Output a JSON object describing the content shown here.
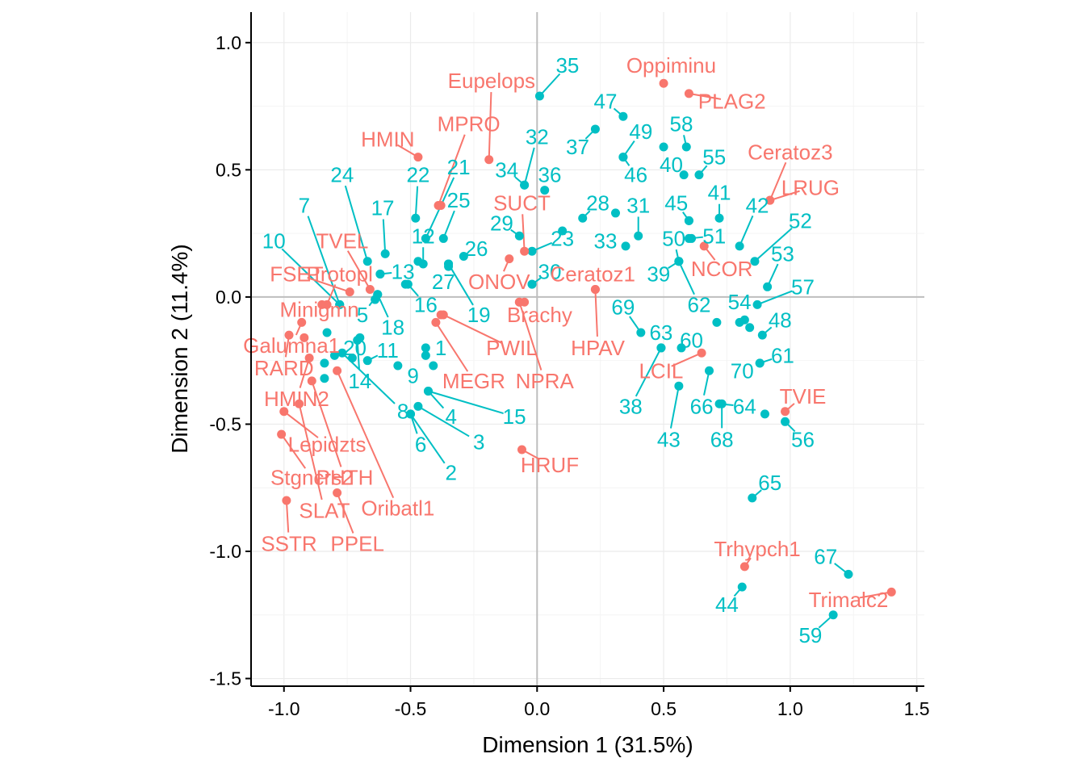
{
  "chart_data": {
    "type": "scatter",
    "title": "",
    "xlabel": "Dimension 1 (31.5%)",
    "ylabel": "Dimension 2 (11.4%)",
    "xlim": [
      -1.13,
      1.53
    ],
    "ylim": [
      -1.53,
      1.12
    ],
    "xticks": [
      -1.0,
      -0.5,
      0.0,
      0.5,
      1.0,
      1.5
    ],
    "yticks": [
      -1.5,
      -1.0,
      -0.5,
      0.0,
      0.5,
      1.0
    ],
    "xtick_labels": [
      "-1.0",
      "-0.5",
      "0.0",
      "0.5",
      "1.0",
      "1.5"
    ],
    "ytick_labels": [
      "-1.5",
      "-1.0",
      "-0.5",
      "0.0",
      "0.5",
      "1.0"
    ],
    "grid": true,
    "colors": {
      "species": "#F8766D",
      "sites": "#00BFC4"
    },
    "species": [
      {
        "label": "Eupelops",
        "x": -0.19,
        "y": 0.54,
        "lx": -0.18,
        "ly": 0.85
      },
      {
        "label": "Oppiminu",
        "x": 0.5,
        "y": 0.84,
        "lx": 0.53,
        "ly": 0.91
      },
      {
        "label": "PLAG2",
        "x": 0.6,
        "y": 0.8,
        "lx": 0.77,
        "ly": 0.77
      },
      {
        "label": "MPRO",
        "x": -0.39,
        "y": 0.36,
        "lx": -0.27,
        "ly": 0.68
      },
      {
        "label": "HMIN",
        "x": -0.47,
        "y": 0.55,
        "lx": -0.59,
        "ly": 0.62
      },
      {
        "label": "Ceratoz3",
        "x": 0.92,
        "y": 0.38,
        "lx": 1.0,
        "ly": 0.57
      },
      {
        "label": "LRUG",
        "x": 0.92,
        "y": 0.38,
        "lx": 1.08,
        "ly": 0.43
      },
      {
        "label": "SUCT",
        "x": -0.05,
        "y": 0.18,
        "lx": -0.06,
        "ly": 0.37
      },
      {
        "label": "TVEL",
        "x": -0.66,
        "y": 0.03,
        "lx": -0.77,
        "ly": 0.22
      },
      {
        "label": "FSET",
        "x": -0.74,
        "y": 0.02,
        "lx": -0.95,
        "ly": 0.09
      },
      {
        "label": "Protopl",
        "x": -0.83,
        "y": -0.03,
        "lx": -0.78,
        "ly": 0.09
      },
      {
        "label": "ONOV",
        "x": -0.11,
        "y": 0.15,
        "lx": -0.15,
        "ly": 0.06
      },
      {
        "label": "Ceratoz1",
        "x": 0.23,
        "y": 0.03,
        "lx": 0.22,
        "ly": 0.09
      },
      {
        "label": "NCOR",
        "x": 0.66,
        "y": 0.2,
        "lx": 0.73,
        "ly": 0.11
      },
      {
        "label": "Minigmn",
        "x": -0.85,
        "y": -0.03,
        "lx": -0.86,
        "ly": -0.05
      },
      {
        "label": "Brachy",
        "x": -0.05,
        "y": -0.02,
        "lx": 0.01,
        "ly": -0.07
      },
      {
        "label": "PWIL",
        "x": -0.37,
        "y": -0.07,
        "lx": -0.1,
        "ly": -0.2
      },
      {
        "label": "HPAV",
        "x": 0.23,
        "y": 0.03,
        "lx": 0.24,
        "ly": -0.2
      },
      {
        "label": "Galumna1",
        "x": -0.93,
        "y": -0.1,
        "lx": -0.97,
        "ly": -0.19
      },
      {
        "label": "RARD",
        "x": -0.98,
        "y": -0.15,
        "lx": -1.0,
        "ly": -0.28
      },
      {
        "label": "LCIL",
        "x": 0.65,
        "y": -0.22,
        "lx": 0.49,
        "ly": -0.29
      },
      {
        "label": "MEGR",
        "x": -0.4,
        "y": -0.1,
        "lx": -0.25,
        "ly": -0.33
      },
      {
        "label": "NPRA",
        "x": -0.07,
        "y": -0.02,
        "lx": 0.03,
        "ly": -0.33
      },
      {
        "label": "TVIE",
        "x": 0.98,
        "y": -0.45,
        "lx": 1.05,
        "ly": -0.39
      },
      {
        "label": "HMIN2",
        "x": -0.9,
        "y": -0.24,
        "lx": -0.95,
        "ly": -0.4
      },
      {
        "label": "Lepidzts",
        "x": -1.0,
        "y": -0.45,
        "lx": -0.83,
        "ly": -0.58
      },
      {
        "label": "HRUF",
        "x": -0.06,
        "y": -0.6,
        "lx": 0.05,
        "ly": -0.66
      },
      {
        "label": "Stgncrs2",
        "x": -1.01,
        "y": -0.54,
        "lx": -0.89,
        "ly": -0.71
      },
      {
        "label": "PHTH",
        "x": -0.89,
        "y": -0.33,
        "lx": -0.76,
        "ly": -0.71
      },
      {
        "label": "SLAT",
        "x": -0.94,
        "y": -0.42,
        "lx": -0.84,
        "ly": -0.84
      },
      {
        "label": "Oribatl1",
        "x": -0.79,
        "y": -0.29,
        "lx": -0.55,
        "ly": -0.83
      },
      {
        "label": "SSTR",
        "x": -0.99,
        "y": -0.8,
        "lx": -0.98,
        "ly": -0.97
      },
      {
        "label": "PPEL",
        "x": -0.79,
        "y": -0.77,
        "lx": -0.71,
        "ly": -0.97
      },
      {
        "label": "Trhypch1",
        "x": 0.82,
        "y": -1.06,
        "lx": 0.87,
        "ly": -0.99
      },
      {
        "label": "Trimalc2",
        "x": 1.4,
        "y": -1.16,
        "lx": 1.23,
        "ly": -1.19
      }
    ],
    "sites": [
      {
        "label": "35",
        "x": 0.01,
        "y": 0.79,
        "lx": 0.12,
        "ly": 0.91
      },
      {
        "label": "47",
        "x": 0.34,
        "y": 0.71,
        "lx": 0.27,
        "ly": 0.77
      },
      {
        "label": "37",
        "x": 0.23,
        "y": 0.66,
        "lx": 0.16,
        "ly": 0.59
      },
      {
        "label": "49",
        "x": 0.34,
        "y": 0.55,
        "lx": 0.41,
        "ly": 0.65
      },
      {
        "label": "58",
        "x": 0.59,
        "y": 0.59,
        "lx": 0.57,
        "ly": 0.68
      },
      {
        "label": "46",
        "x": 0.34,
        "y": 0.55,
        "lx": 0.39,
        "ly": 0.48
      },
      {
        "label": "40",
        "x": 0.5,
        "y": 0.59,
        "lx": 0.53,
        "ly": 0.52
      },
      {
        "label": "55",
        "x": 0.64,
        "y": 0.48,
        "lx": 0.7,
        "ly": 0.55
      },
      {
        "label": "32",
        "x": -0.05,
        "y": 0.44,
        "lx": 0.0,
        "ly": 0.63
      },
      {
        "label": "34",
        "x": -0.05,
        "y": 0.44,
        "lx": -0.12,
        "ly": 0.5
      },
      {
        "label": "36",
        "x": 0.03,
        "y": 0.42,
        "lx": 0.05,
        "ly": 0.48
      },
      {
        "label": "22",
        "x": -0.48,
        "y": 0.31,
        "lx": -0.47,
        "ly": 0.48
      },
      {
        "label": "21",
        "x": -0.44,
        "y": 0.23,
        "lx": -0.31,
        "ly": 0.51
      },
      {
        "label": "24",
        "x": -0.67,
        "y": 0.14,
        "lx": -0.77,
        "ly": 0.48
      },
      {
        "label": "7",
        "x": -0.78,
        "y": -0.03,
        "lx": -0.92,
        "ly": 0.36
      },
      {
        "label": "17",
        "x": -0.6,
        "y": 0.17,
        "lx": -0.61,
        "ly": 0.35
      },
      {
        "label": "25",
        "x": -0.37,
        "y": 0.23,
        "lx": -0.31,
        "ly": 0.38
      },
      {
        "label": "41",
        "x": 0.72,
        "y": 0.31,
        "lx": 0.72,
        "ly": 0.41
      },
      {
        "label": "45",
        "x": 0.6,
        "y": 0.3,
        "lx": 0.55,
        "ly": 0.37
      },
      {
        "label": "42",
        "x": 0.8,
        "y": 0.2,
        "lx": 0.87,
        "ly": 0.36
      },
      {
        "label": "28",
        "x": 0.18,
        "y": 0.31,
        "lx": 0.24,
        "ly": 0.37
      },
      {
        "label": "31",
        "x": 0.4,
        "y": 0.24,
        "lx": 0.4,
        "ly": 0.36
      },
      {
        "label": "10",
        "x": -0.78,
        "y": -0.03,
        "lx": -1.04,
        "ly": 0.22
      },
      {
        "label": "12",
        "x": -0.45,
        "y": 0.13,
        "lx": -0.45,
        "ly": 0.24
      },
      {
        "label": "29",
        "x": -0.07,
        "y": 0.24,
        "lx": -0.14,
        "ly": 0.29
      },
      {
        "label": "52",
        "x": 0.86,
        "y": 0.14,
        "lx": 1.04,
        "ly": 0.3
      },
      {
        "label": "13",
        "x": -0.62,
        "y": 0.09,
        "lx": -0.53,
        "ly": 0.1
      },
      {
        "label": "26",
        "x": -0.29,
        "y": 0.16,
        "lx": -0.24,
        "ly": 0.19
      },
      {
        "label": "23",
        "x": -0.02,
        "y": 0.18,
        "lx": 0.1,
        "ly": 0.23
      },
      {
        "label": "33",
        "x": 0.35,
        "y": 0.2,
        "lx": 0.27,
        "ly": 0.22
      },
      {
        "label": "50",
        "x": 0.56,
        "y": 0.14,
        "lx": 0.54,
        "ly": 0.23
      },
      {
        "label": "51",
        "x": 0.6,
        "y": 0.23,
        "lx": 0.7,
        "ly": 0.24
      },
      {
        "label": "53",
        "x": 0.91,
        "y": 0.04,
        "lx": 0.97,
        "ly": 0.17
      },
      {
        "label": "27",
        "x": -0.35,
        "y": 0.13,
        "lx": -0.37,
        "ly": 0.06
      },
      {
        "label": "30",
        "x": -0.02,
        "y": 0.05,
        "lx": 0.05,
        "ly": 0.1
      },
      {
        "label": "39",
        "x": 0.56,
        "y": 0.14,
        "lx": 0.48,
        "ly": 0.09
      },
      {
        "label": "5",
        "x": -0.63,
        "y": 0.01,
        "lx": -0.69,
        "ly": -0.07
      },
      {
        "label": "16",
        "x": -0.51,
        "y": 0.05,
        "lx": -0.44,
        "ly": -0.03
      },
      {
        "label": "62",
        "x": 0.56,
        "y": 0.14,
        "lx": 0.64,
        "ly": -0.03
      },
      {
        "label": "69",
        "x": 0.41,
        "y": -0.14,
        "lx": 0.34,
        "ly": -0.04
      },
      {
        "label": "57",
        "x": 0.87,
        "y": -0.03,
        "lx": 1.05,
        "ly": 0.04
      },
      {
        "label": "54",
        "x": 0.8,
        "y": -0.1,
        "lx": 0.8,
        "ly": -0.02
      },
      {
        "label": "48",
        "x": 0.89,
        "y": -0.15,
        "lx": 0.96,
        "ly": -0.09
      },
      {
        "label": "19",
        "x": -0.35,
        "y": 0.13,
        "lx": -0.23,
        "ly": -0.07
      },
      {
        "label": "18",
        "x": -0.63,
        "y": 0.01,
        "lx": -0.57,
        "ly": -0.12
      },
      {
        "label": "63",
        "x": 0.49,
        "y": -0.2,
        "lx": 0.49,
        "ly": -0.14
      },
      {
        "label": "60",
        "x": 0.57,
        "y": -0.2,
        "lx": 0.61,
        "ly": -0.17
      },
      {
        "label": "61",
        "x": 0.88,
        "y": -0.26,
        "lx": 0.97,
        "ly": -0.23
      },
      {
        "label": "20",
        "x": -0.8,
        "y": -0.23,
        "lx": -0.72,
        "ly": -0.2
      },
      {
        "label": "11",
        "x": -0.67,
        "y": -0.25,
        "lx": -0.59,
        "ly": -0.21
      },
      {
        "label": "1",
        "x": -0.44,
        "y": -0.23,
        "lx": -0.38,
        "ly": -0.2
      },
      {
        "label": "70",
        "x": 0.88,
        "y": -0.26,
        "lx": 0.81,
        "ly": -0.29
      },
      {
        "label": "14",
        "x": -0.71,
        "y": -0.17,
        "lx": -0.7,
        "ly": -0.33
      },
      {
        "label": "9",
        "x": -0.55,
        "y": -0.27,
        "lx": -0.49,
        "ly": -0.31
      },
      {
        "label": "8",
        "x": -0.77,
        "y": -0.22,
        "lx": -0.53,
        "ly": -0.45
      },
      {
        "label": "4",
        "x": -0.43,
        "y": -0.37,
        "lx": -0.34,
        "ly": -0.47
      },
      {
        "label": "15",
        "x": -0.43,
        "y": -0.37,
        "lx": -0.09,
        "ly": -0.47
      },
      {
        "label": "66",
        "x": 0.68,
        "y": -0.29,
        "lx": 0.65,
        "ly": -0.43
      },
      {
        "label": "64",
        "x": 0.72,
        "y": -0.42,
        "lx": 0.82,
        "ly": -0.43
      },
      {
        "label": "38",
        "x": 0.49,
        "y": -0.2,
        "lx": 0.37,
        "ly": -0.43
      },
      {
        "label": "6",
        "x": -0.5,
        "y": -0.46,
        "lx": -0.46,
        "ly": -0.58
      },
      {
        "label": "3",
        "x": -0.47,
        "y": -0.43,
        "lx": -0.23,
        "ly": -0.57
      },
      {
        "label": "43",
        "x": 0.56,
        "y": -0.35,
        "lx": 0.52,
        "ly": -0.56
      },
      {
        "label": "68",
        "x": 0.73,
        "y": -0.42,
        "lx": 0.73,
        "ly": -0.56
      },
      {
        "label": "56",
        "x": 0.98,
        "y": -0.49,
        "lx": 1.05,
        "ly": -0.56
      },
      {
        "label": "2",
        "x": -0.5,
        "y": -0.46,
        "lx": -0.34,
        "ly": -0.69
      },
      {
        "label": "65",
        "x": 0.85,
        "y": -0.79,
        "lx": 0.92,
        "ly": -0.73
      },
      {
        "label": "67",
        "x": 1.23,
        "y": -1.09,
        "lx": 1.14,
        "ly": -1.02
      },
      {
        "label": "44",
        "x": 0.81,
        "y": -1.14,
        "lx": 0.75,
        "ly": -1.21
      },
      {
        "label": "59",
        "x": 1.17,
        "y": -1.25,
        "lx": 1.08,
        "ly": -1.33
      }
    ],
    "extra_points": [
      {
        "x": -0.38,
        "y": 0.36,
        "group": "species"
      },
      {
        "x": -0.44,
        "y": -0.2,
        "group": "sites"
      },
      {
        "x": -0.52,
        "y": 0.05,
        "group": "sites"
      },
      {
        "x": -0.64,
        "y": -0.01,
        "group": "sites"
      },
      {
        "x": -0.47,
        "y": 0.14,
        "group": "sites"
      },
      {
        "x": -0.35,
        "y": 0.12,
        "group": "sites"
      },
      {
        "x": -0.62,
        "y": 0.09,
        "group": "sites"
      },
      {
        "x": -0.83,
        "y": -0.14,
        "group": "sites"
      },
      {
        "x": -0.7,
        "y": -0.16,
        "group": "sites"
      },
      {
        "x": -0.84,
        "y": -0.26,
        "group": "sites"
      },
      {
        "x": -0.73,
        "y": -0.24,
        "group": "sites"
      },
      {
        "x": -0.41,
        "y": -0.27,
        "group": "sites"
      },
      {
        "x": 0.1,
        "y": 0.26,
        "group": "sites"
      },
      {
        "x": 0.31,
        "y": 0.33,
        "group": "sites"
      },
      {
        "x": 0.58,
        "y": 0.48,
        "group": "sites"
      },
      {
        "x": 0.61,
        "y": 0.23,
        "group": "sites"
      },
      {
        "x": 0.6,
        "y": 0.3,
        "group": "sites"
      },
      {
        "x": 0.71,
        "y": -0.1,
        "group": "sites"
      },
      {
        "x": 0.82,
        "y": -0.09,
        "group": "sites"
      },
      {
        "x": 0.84,
        "y": -0.12,
        "group": "sites"
      },
      {
        "x": 0.9,
        "y": -0.46,
        "group": "sites"
      },
      {
        "x": -0.02,
        "y": 0.05,
        "group": "sites"
      },
      {
        "x": -0.07,
        "y": -0.02,
        "group": "species"
      },
      {
        "x": -0.38,
        "y": -0.07,
        "group": "species"
      },
      {
        "x": -0.84,
        "y": -0.32,
        "group": "sites"
      },
      {
        "x": -0.92,
        "y": -0.16,
        "group": "species"
      }
    ]
  }
}
